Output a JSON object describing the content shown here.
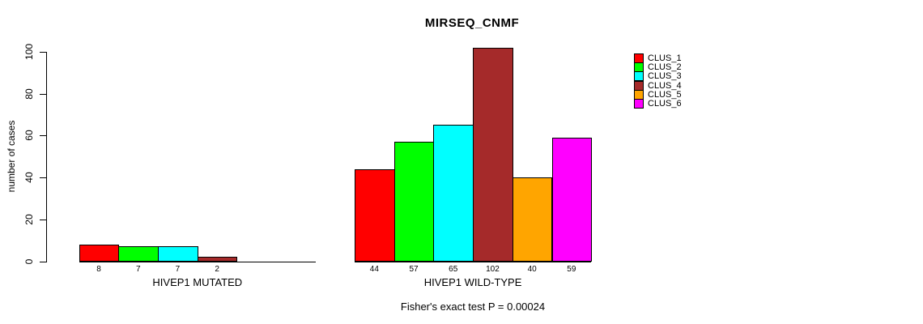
{
  "title": "MIRSEQ_CNMF",
  "ylabel": "number of cases",
  "footnote": "Fisher's exact test P = 0.00024",
  "chart_data": {
    "type": "bar",
    "title": "MIRSEQ_CNMF",
    "xlabel": "",
    "ylabel": "number of cases",
    "ylim": [
      0,
      100
    ],
    "yticks": [
      0,
      20,
      40,
      60,
      80,
      100
    ],
    "grid": false,
    "legend_position": "right",
    "series": [
      {
        "name": "CLUS_1",
        "color": "#ff0000"
      },
      {
        "name": "CLUS_2",
        "color": "#00ff00"
      },
      {
        "name": "CLUS_3",
        "color": "#00ffff"
      },
      {
        "name": "CLUS_4",
        "color": "#a52a2a"
      },
      {
        "name": "CLUS_5",
        "color": "#ffa500"
      },
      {
        "name": "CLUS_6",
        "color": "#ff00ff"
      }
    ],
    "groups": [
      {
        "label": "HIVEP1 MUTATED",
        "values": [
          8,
          7,
          7,
          2,
          0,
          0
        ],
        "value_labels": [
          "8",
          "7",
          "7",
          "2",
          "",
          ""
        ]
      },
      {
        "label": "HIVEP1 WILD-TYPE",
        "values": [
          44,
          57,
          65,
          102,
          40,
          59
        ],
        "value_labels": [
          "44",
          "57",
          "65",
          "102",
          "40",
          "59"
        ]
      }
    ],
    "annotation": "Fisher's exact test P = 0.00024"
  }
}
